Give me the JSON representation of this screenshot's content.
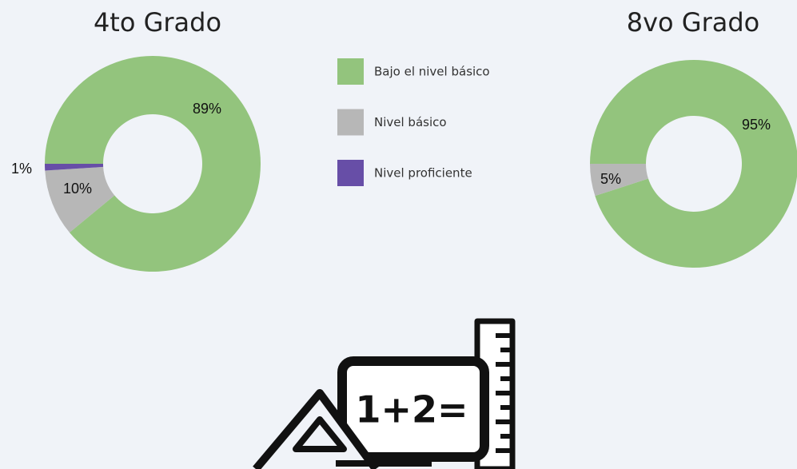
{
  "chart_data": [
    {
      "type": "pie",
      "title": "4to Grado",
      "categories": [
        "Bajo el nivel básico",
        "Nivel básico",
        "Nivel proficiente"
      ],
      "values": [
        89,
        10,
        1
      ],
      "value_labels": [
        "89%",
        "10%",
        "1%"
      ],
      "colors": [
        "#93c47d",
        "#b7b7b7",
        "#674ea7"
      ]
    },
    {
      "type": "pie",
      "title": "8vo Grado",
      "categories": [
        "Bajo el nivel básico",
        "Nivel básico"
      ],
      "values": [
        95,
        5
      ],
      "value_labels": [
        "95%",
        "5%"
      ],
      "colors": [
        "#93c47d",
        "#b7b7b7"
      ]
    }
  ],
  "illustration": {
    "text": "1+2="
  }
}
